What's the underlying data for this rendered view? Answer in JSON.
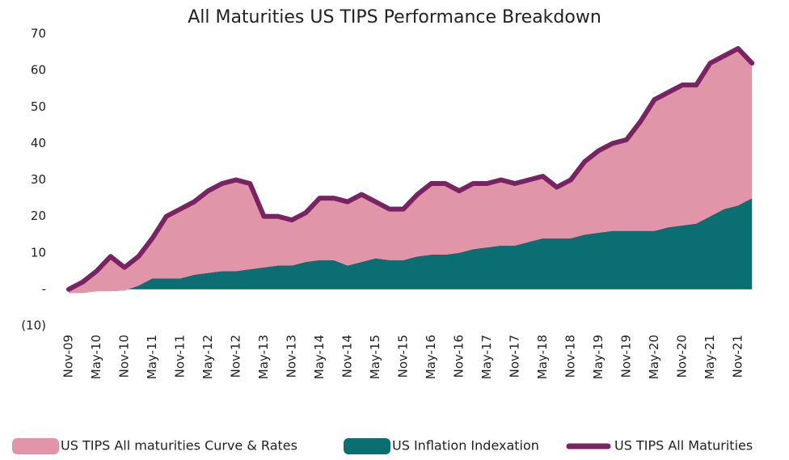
{
  "chart_data": {
    "type": "stacked-area-line",
    "title": "All Maturities US TIPS Performance Breakdown",
    "categories": [
      "Nov-09",
      null,
      "May-10",
      null,
      "Nov-10",
      null,
      "May-11",
      null,
      "Nov-11",
      null,
      "May-12",
      null,
      "Nov-12",
      null,
      "May-13",
      null,
      "Nov-13",
      null,
      "May-14",
      null,
      "Nov-14",
      null,
      "May-15",
      null,
      "Nov-15",
      null,
      "May-16",
      null,
      "Nov-16",
      null,
      "May-17",
      null,
      "Nov-17",
      null,
      "May-18",
      null,
      "Nov-18",
      null,
      "May-19",
      null,
      "Nov-19",
      null,
      "May-20",
      null,
      "Nov-20",
      null,
      "May-21",
      null,
      "Nov-21",
      null
    ],
    "series": [
      {
        "name": "US TIPS All maturities Curve & Rates",
        "color": "#e095a8",
        "kind": "area",
        "values": [
          1,
          3,
          5.5,
          9.5,
          6.3,
          8,
          11,
          17,
          19,
          20,
          22.5,
          24,
          25,
          23.5,
          14,
          13.5,
          12.5,
          13.5,
          17,
          17,
          17.5,
          18.5,
          15.5,
          14,
          14,
          17,
          19.5,
          19.5,
          17,
          18,
          17.5,
          18,
          17,
          17,
          17,
          14,
          16,
          20,
          22.5,
          24,
          25,
          30,
          36,
          37,
          38.5,
          38,
          42,
          42,
          43,
          37
        ]
      },
      {
        "name": "US Inflation Indexation",
        "color": "#0a6e72",
        "kind": "area",
        "values": [
          -1,
          -1,
          -0.5,
          -0.5,
          -0.3,
          1,
          3,
          3,
          3,
          4,
          4.5,
          5,
          5,
          5.5,
          6,
          6.5,
          6.5,
          7.5,
          8,
          8,
          6.5,
          7.5,
          8.5,
          8,
          8,
          9,
          9.5,
          9.5,
          10,
          11,
          11.5,
          12,
          12,
          13,
          14,
          14,
          14,
          15,
          15.5,
          16,
          16,
          16,
          16,
          17,
          17.5,
          18,
          20,
          22,
          23,
          25
        ]
      },
      {
        "name": "US TIPS All Maturities",
        "color": "#7a2262",
        "kind": "line",
        "values": [
          0,
          2,
          5,
          9,
          6,
          9,
          14,
          20,
          22,
          24,
          27,
          29,
          30,
          29,
          20,
          20,
          19,
          21,
          25,
          25,
          24,
          26,
          24,
          22,
          22,
          26,
          29,
          29,
          27,
          29,
          29,
          30,
          29,
          30,
          31,
          28,
          30,
          35,
          38,
          40,
          41,
          46,
          52,
          54,
          56,
          56,
          62,
          64,
          66,
          62
        ]
      }
    ],
    "ylim": [
      -10,
      70
    ],
    "yticks": [
      {
        "value": -10,
        "label": "(10)"
      },
      {
        "value": 0,
        "label": "-"
      },
      10,
      20,
      30,
      40,
      50,
      60,
      70
    ],
    "legend": "bottom"
  }
}
